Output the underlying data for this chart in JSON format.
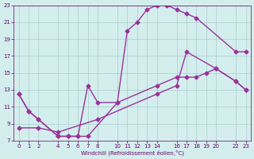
{
  "xlabel": "Windchill (Refroidissement éolien,°C)",
  "bg_color": "#d4eeee",
  "grid_color": "#aacccc",
  "line_color": "#993399",
  "xlim": [
    -0.5,
    23.5
  ],
  "ylim": [
    7,
    23
  ],
  "xticks": [
    0,
    1,
    2,
    4,
    5,
    6,
    7,
    8,
    10,
    11,
    12,
    13,
    14,
    16,
    17,
    18,
    19,
    20,
    22,
    23
  ],
  "yticks": [
    7,
    9,
    11,
    13,
    15,
    17,
    19,
    21,
    23
  ],
  "curve1_x": [
    0,
    1,
    2,
    4,
    5,
    6,
    7,
    10,
    11,
    12,
    13,
    14,
    15,
    16,
    17,
    18,
    22,
    23
  ],
  "curve1_y": [
    12.5,
    10.5,
    9.5,
    7.5,
    7.5,
    7.5,
    7.5,
    11.5,
    20.0,
    21.0,
    22.5,
    23.0,
    23.0,
    22.5,
    22.0,
    21.5,
    17.5,
    17.5
  ],
  "curve2_x": [
    0,
    1,
    2,
    4,
    5,
    6,
    7,
    8,
    10,
    14,
    16,
    17,
    18,
    19,
    20,
    22,
    23
  ],
  "curve2_y": [
    12.5,
    10.5,
    9.5,
    7.5,
    7.5,
    7.5,
    13.5,
    11.5,
    11.5,
    13.5,
    14.5,
    14.5,
    14.5,
    15.0,
    15.5,
    14.0,
    13.0
  ],
  "curve3_x": [
    0,
    2,
    4,
    8,
    14,
    16,
    17,
    20,
    22,
    23
  ],
  "curve3_y": [
    8.5,
    8.5,
    8.0,
    9.5,
    12.5,
    13.5,
    17.5,
    15.5,
    14.0,
    13.0
  ]
}
